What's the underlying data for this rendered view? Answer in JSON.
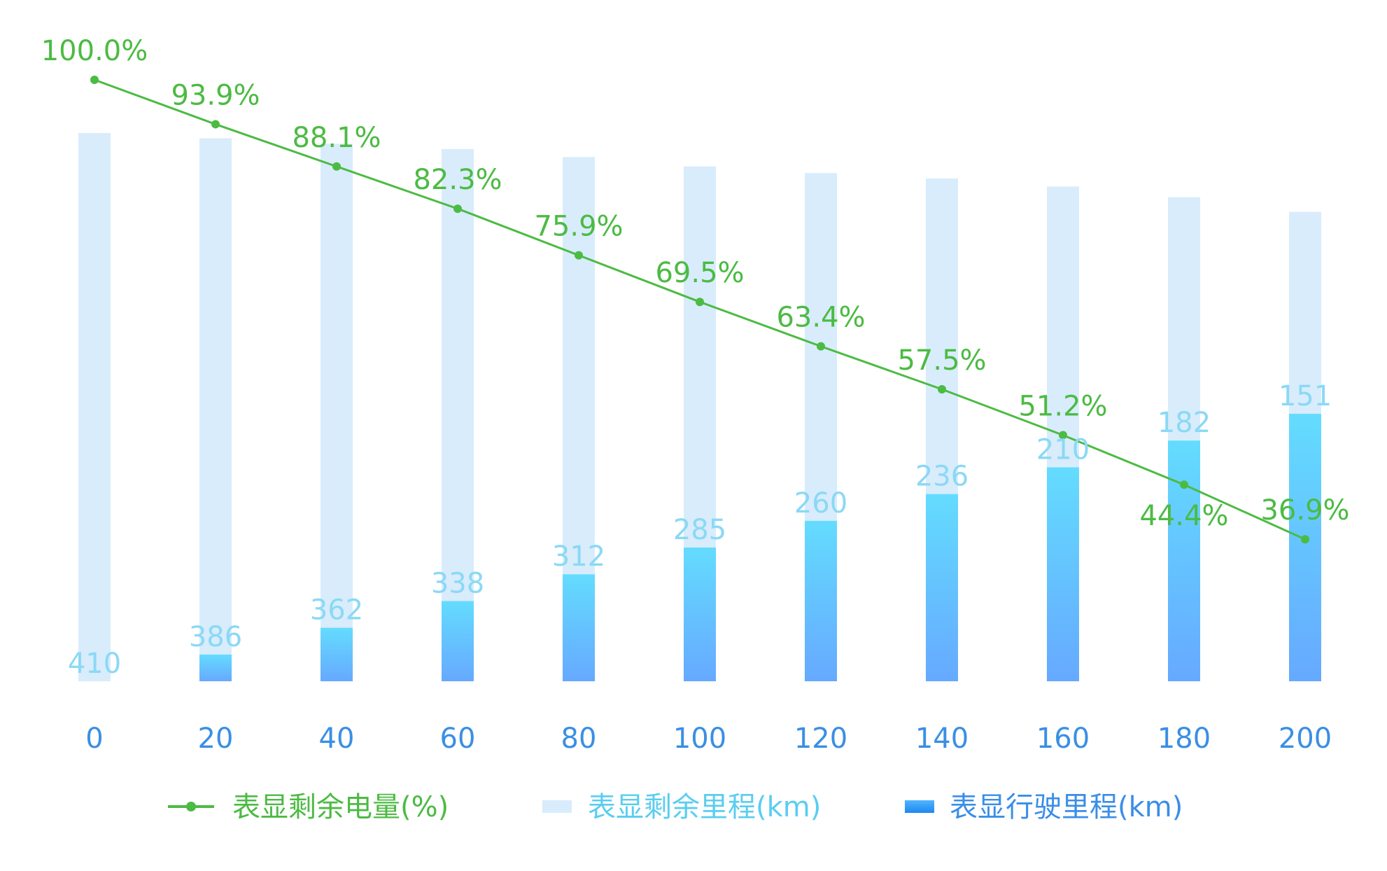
{
  "chart_data": {
    "type": "bar",
    "categories": [
      "0",
      "20",
      "40",
      "60",
      "80",
      "100",
      "120",
      "140",
      "160",
      "180",
      "200"
    ],
    "series": [
      {
        "name": "表显剩余电量(%)",
        "type": "line",
        "values": [
          100.0,
          93.9,
          88.1,
          82.3,
          75.9,
          69.5,
          63.4,
          57.5,
          51.2,
          44.4,
          36.9
        ],
        "labels": [
          "100.0%",
          "93.9%",
          "88.1%",
          "82.3%",
          "75.9%",
          "69.5%",
          "63.4%",
          "57.5%",
          "51.2%",
          "44.4%",
          "36.9%"
        ],
        "color": "#4cbb43"
      },
      {
        "name": "表显剩余里程(km)",
        "type": "bar",
        "stack": "total",
        "values": [
          410,
          386,
          362,
          338,
          312,
          285,
          260,
          236,
          210,
          182,
          151
        ],
        "color": "#d8ecfc"
      },
      {
        "name": "表显行驶里程(km)",
        "type": "bar",
        "stack": "total",
        "values": [
          0,
          20,
          40,
          60,
          80,
          100,
          120,
          140,
          160,
          180,
          200
        ],
        "color": "#66aaff"
      }
    ],
    "legend_position": "bottom",
    "grid": false
  }
}
